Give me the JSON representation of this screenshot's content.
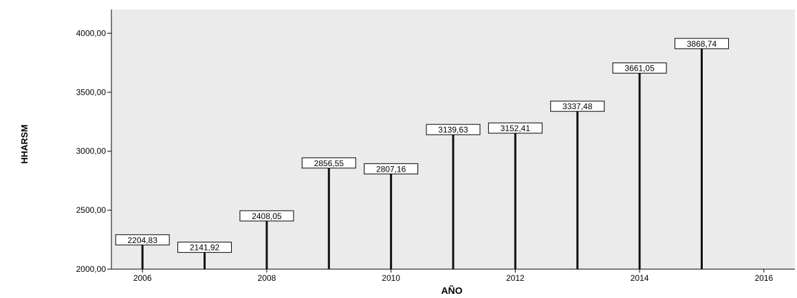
{
  "chart_data": {
    "type": "bar",
    "style": "needle",
    "xlabel": "AÑO",
    "ylabel": "HHARSM",
    "xlim": [
      2005.5,
      2016.5
    ],
    "ylim": [
      2000,
      4200
    ],
    "xticks": [
      2006,
      2008,
      2010,
      2012,
      2014,
      2016
    ],
    "xtick_labels": [
      "2006",
      "2008",
      "2010",
      "2012",
      "2014",
      "2016"
    ],
    "yticks": [
      2000,
      2500,
      3000,
      3500,
      4000
    ],
    "ytick_labels": [
      "2000,00",
      "2500,00",
      "3000,00",
      "3500,00",
      "4000,00"
    ],
    "grid": false,
    "plot_background": "#ebebeb",
    "bar_color": "#111111",
    "x": [
      2006,
      2007,
      2008,
      2009,
      2010,
      2011,
      2012,
      2013,
      2014,
      2015
    ],
    "values": [
      2204.83,
      2141.92,
      2408.05,
      2856.55,
      2807.16,
      3139.63,
      3152.41,
      3337.48,
      3661.05,
      3868.74
    ],
    "data_labels": [
      "2204,83",
      "2141,92",
      "2408,05",
      "2856,55",
      "2807,16",
      "3139,63",
      "3152,41",
      "3337,48",
      "3661,05",
      "3868,74"
    ]
  }
}
